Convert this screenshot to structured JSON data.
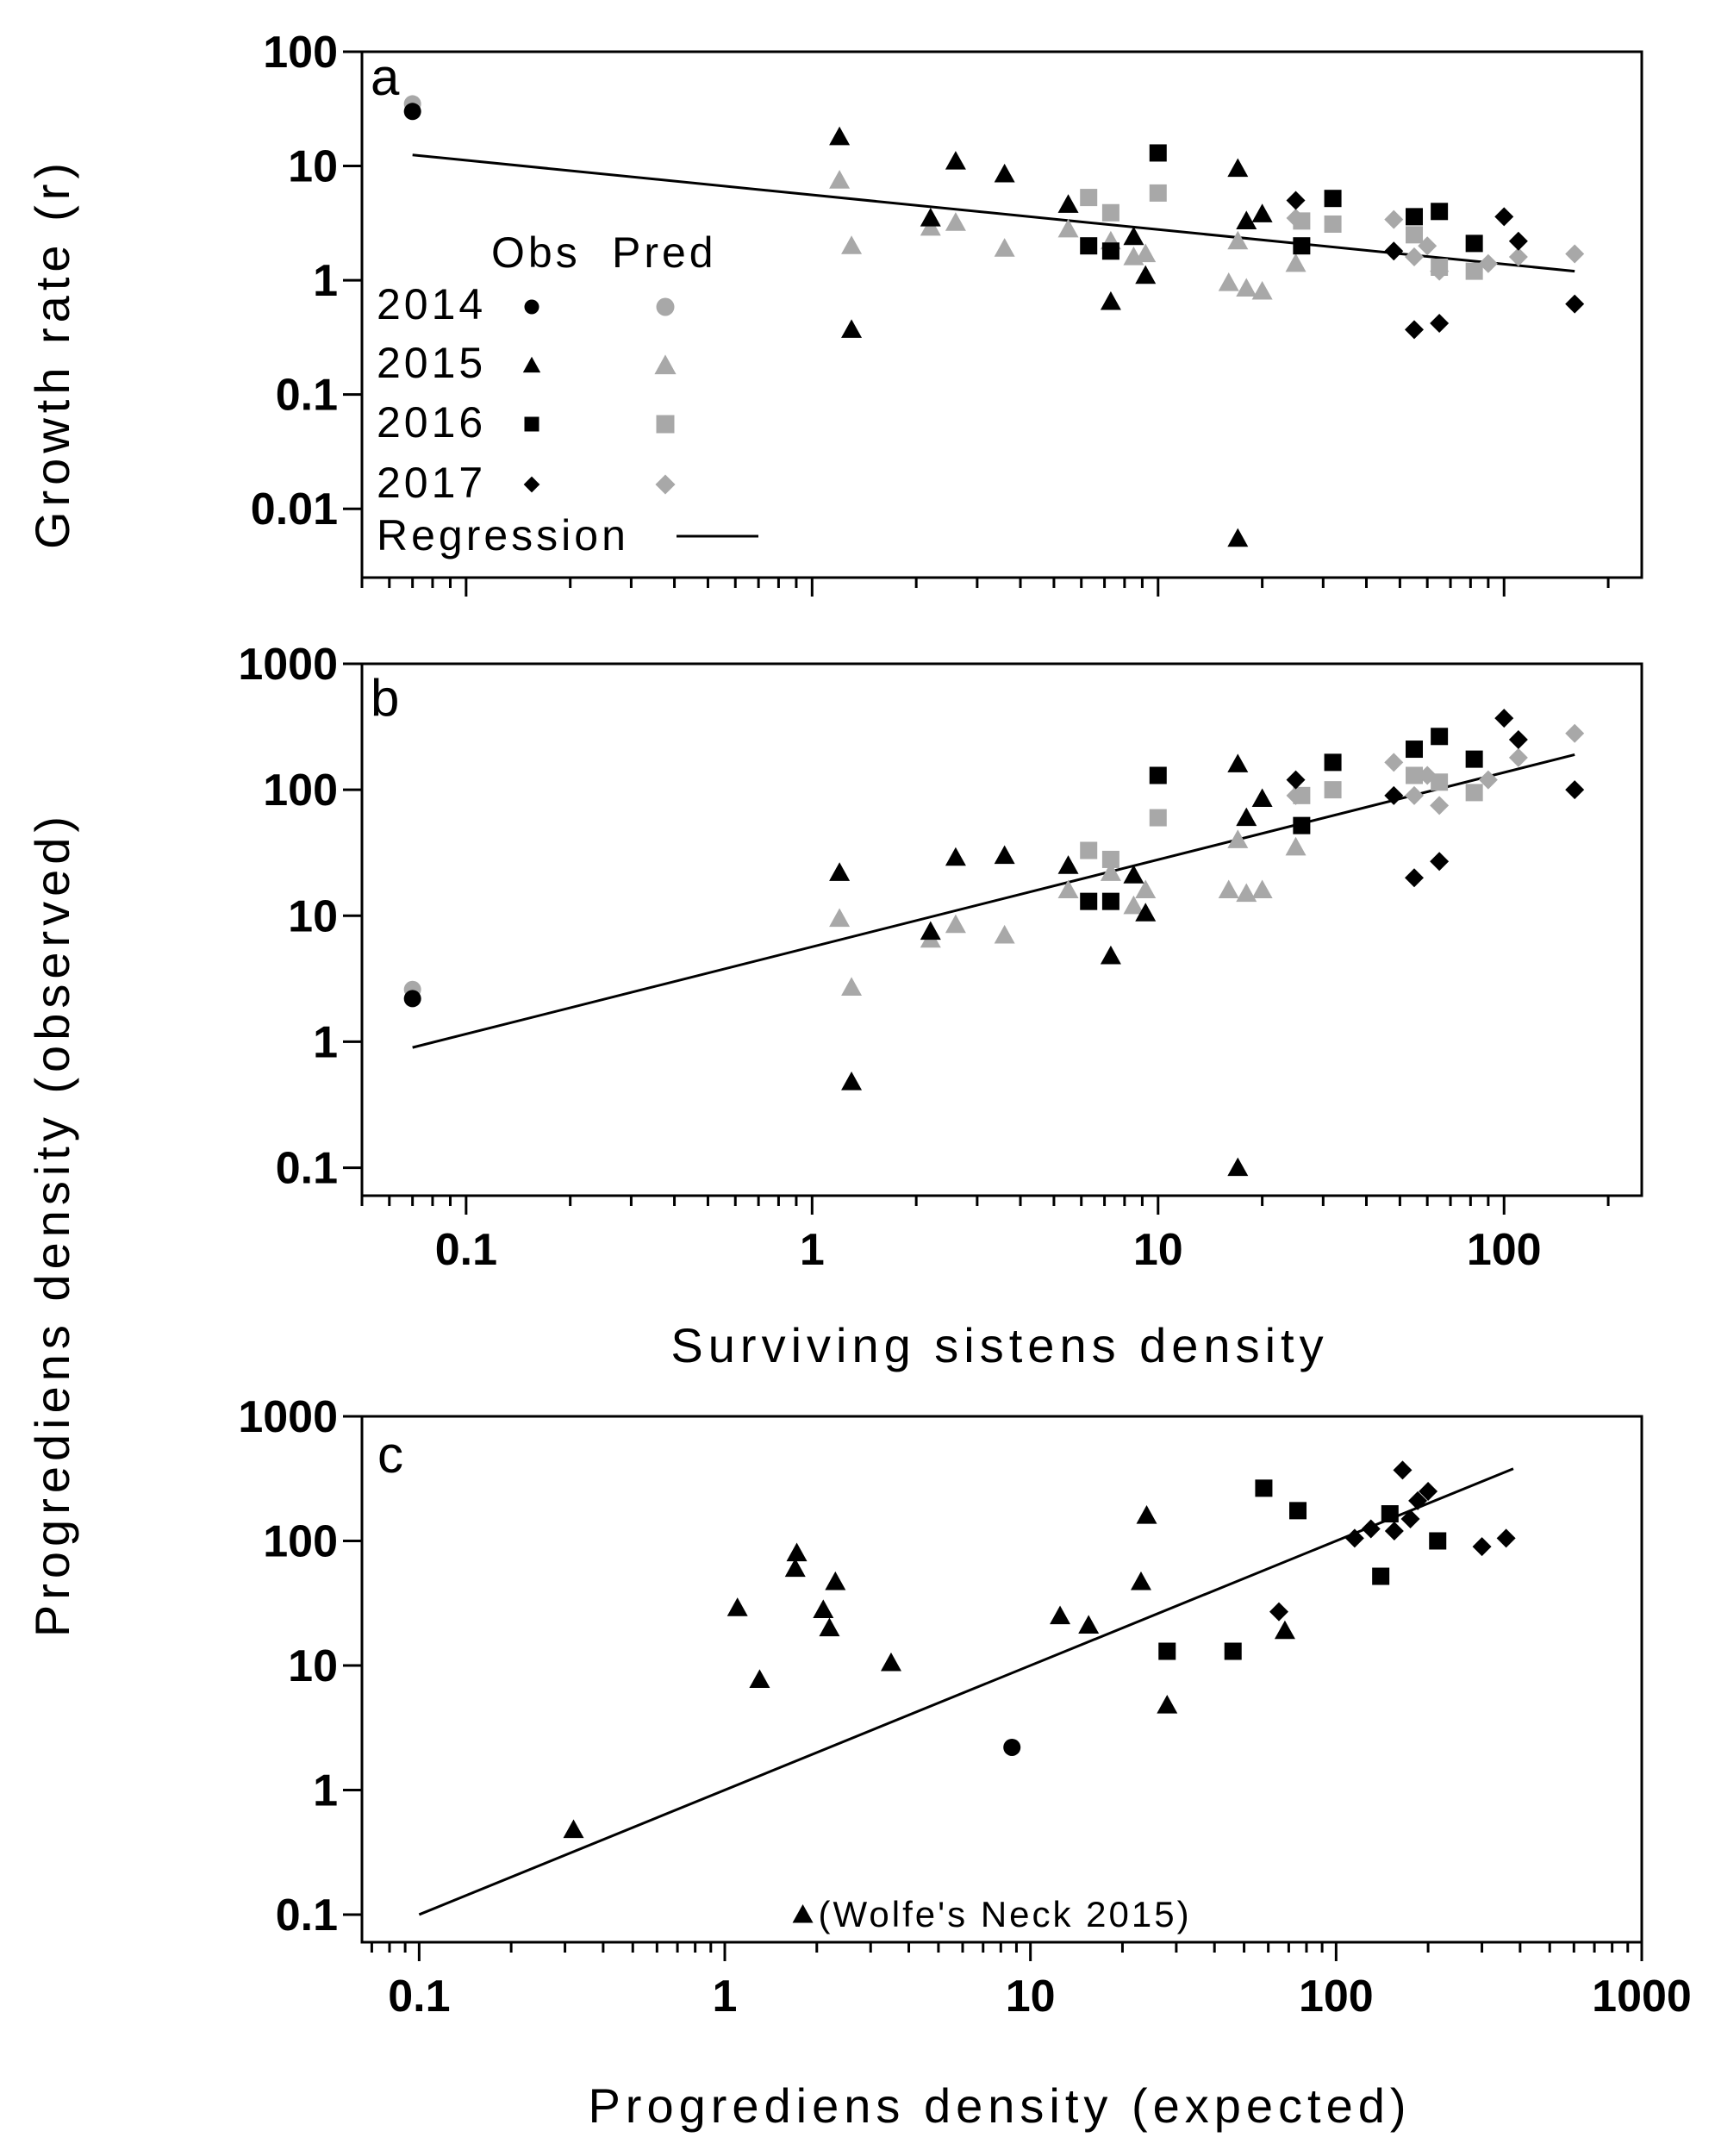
{
  "colors": {
    "obs": "#000000",
    "pred": "#a8a8a8"
  },
  "chart_data": [
    {
      "type": "scatter",
      "panel": "a",
      "xscale": "log",
      "yscale": "log",
      "xlim": [
        0.05,
        250
      ],
      "ylim": [
        0.0025,
        100
      ],
      "ylabel": "Growth rate (r)",
      "xticks": [
        0.1,
        1,
        10,
        100
      ],
      "xtick_labels": [],
      "yticks": [
        0.01,
        0.1,
        1,
        10,
        100
      ],
      "ytick_labels": [
        "0.01",
        "0.1",
        "1",
        "10",
        "100"
      ],
      "legend": {
        "header": [
          "Obs",
          "Pred"
        ],
        "years": [
          "2014",
          "2015",
          "2016",
          "2017"
        ],
        "regression_label": "Regression"
      },
      "regression": {
        "x": [
          0.07,
          160
        ],
        "y": [
          12.5,
          1.2
        ]
      },
      "series": [
        {
          "name": "2014",
          "kind": "obs",
          "marker": "circle",
          "points": [
            [
              0.07,
              30
            ]
          ]
        },
        {
          "name": "2014",
          "kind": "pred",
          "marker": "circle",
          "points": [
            [
              0.07,
              35
            ]
          ]
        },
        {
          "name": "2015",
          "kind": "obs",
          "marker": "triangle",
          "points": [
            [
              1.2,
              18
            ],
            [
              1.3,
              0.37
            ],
            [
              2.2,
              3.5
            ],
            [
              2.6,
              11
            ],
            [
              3.6,
              8.5
            ],
            [
              5.5,
              4.6
            ],
            [
              7.3,
              0.65
            ],
            [
              8.5,
              2.4
            ],
            [
              9.2,
              1.1
            ],
            [
              17,
              9.5
            ],
            [
              17,
              0.0055
            ],
            [
              18,
              3.3
            ],
            [
              20,
              3.8
            ]
          ]
        },
        {
          "name": "2015",
          "kind": "pred",
          "marker": "triangle",
          "points": [
            [
              1.2,
              7.5
            ],
            [
              1.3,
              2.0
            ],
            [
              2.2,
              2.9
            ],
            [
              2.6,
              3.2
            ],
            [
              3.6,
              1.9
            ],
            [
              5.5,
              2.8
            ],
            [
              7.3,
              2.2
            ],
            [
              8.5,
              1.6
            ],
            [
              9.2,
              1.7
            ],
            [
              16,
              0.95
            ],
            [
              17,
              2.2
            ],
            [
              18,
              0.85
            ],
            [
              20,
              0.8
            ],
            [
              25,
              1.4
            ]
          ]
        },
        {
          "name": "2016",
          "kind": "obs",
          "marker": "square",
          "points": [
            [
              6.3,
              2.0
            ],
            [
              7.3,
              1.8
            ],
            [
              10,
              13
            ],
            [
              26,
              2.0
            ],
            [
              32,
              5.2
            ],
            [
              55,
              3.6
            ],
            [
              65,
              4.0
            ],
            [
              82,
              2.1
            ]
          ]
        },
        {
          "name": "2016",
          "kind": "pred",
          "marker": "square",
          "points": [
            [
              6.3,
              5.3
            ],
            [
              7.3,
              3.9
            ],
            [
              10,
              5.8
            ],
            [
              26,
              3.3
            ],
            [
              32,
              3.1
            ],
            [
              55,
              2.5
            ],
            [
              65,
              1.3
            ],
            [
              82,
              1.2
            ]
          ]
        },
        {
          "name": "2017",
          "kind": "obs",
          "marker": "diamond",
          "points": [
            [
              25,
              5.0
            ],
            [
              48,
              1.8
            ],
            [
              55,
              0.37
            ],
            [
              65,
              0.42
            ],
            [
              100,
              3.6
            ],
            [
              110,
              2.2
            ],
            [
              160,
              0.62
            ]
          ]
        },
        {
          "name": "2017",
          "kind": "pred",
          "marker": "diamond",
          "points": [
            [
              25,
              3.5
            ],
            [
              48,
              3.4
            ],
            [
              55,
              1.6
            ],
            [
              60,
              2.0
            ],
            [
              65,
              1.2
            ],
            [
              90,
              1.4
            ],
            [
              110,
              1.6
            ],
            [
              160,
              1.7
            ]
          ]
        }
      ]
    },
    {
      "type": "scatter",
      "panel": "b",
      "xscale": "log",
      "yscale": "log",
      "xlim": [
        0.05,
        250
      ],
      "ylim": [
        0.06,
        1000
      ],
      "xlabel": "Surviving sistens density",
      "ylabel": "Progrediens density (observed)",
      "xticks": [
        0.1,
        1,
        10,
        100
      ],
      "xtick_labels": [
        "0.1",
        "1",
        "10",
        "100"
      ],
      "yticks": [
        0.1,
        1,
        10,
        100,
        1000
      ],
      "ytick_labels": [
        "0.1",
        "1",
        "10",
        "100",
        "1000"
      ],
      "regression": {
        "x": [
          0.07,
          160
        ],
        "y": [
          0.9,
          190
        ]
      },
      "series": [
        {
          "name": "2014",
          "kind": "obs",
          "marker": "circle",
          "points": [
            [
              0.07,
              2.2
            ]
          ]
        },
        {
          "name": "2014",
          "kind": "pred",
          "marker": "circle",
          "points": [
            [
              0.07,
              2.6
            ]
          ]
        },
        {
          "name": "2015",
          "kind": "obs",
          "marker": "triangle",
          "points": [
            [
              1.2,
              22
            ],
            [
              1.3,
              0.48
            ],
            [
              2.2,
              7.5
            ],
            [
              2.6,
              29
            ],
            [
              3.6,
              30
            ],
            [
              5.5,
              25
            ],
            [
              7.3,
              4.8
            ],
            [
              8.5,
              21
            ],
            [
              9.2,
              10.5
            ],
            [
              17,
              160
            ],
            [
              17,
              0.1
            ],
            [
              18,
              60
            ],
            [
              20,
              85
            ]
          ]
        },
        {
          "name": "2015",
          "kind": "pred",
          "marker": "triangle",
          "points": [
            [
              1.2,
              9.5
            ],
            [
              1.3,
              2.7
            ],
            [
              2.2,
              6.5
            ],
            [
              2.6,
              8.5
            ],
            [
              3.6,
              7
            ],
            [
              5.5,
              16
            ],
            [
              7.3,
              22
            ],
            [
              8.5,
              12
            ],
            [
              9.2,
              16
            ],
            [
              16,
              16
            ],
            [
              17,
              40
            ],
            [
              18,
              15
            ],
            [
              20,
              16
            ],
            [
              25,
              35
            ]
          ]
        },
        {
          "name": "2016",
          "kind": "obs",
          "marker": "square",
          "points": [
            [
              6.3,
              13
            ],
            [
              7.3,
              13
            ],
            [
              10,
              130
            ],
            [
              26,
              52
            ],
            [
              32,
              165
            ],
            [
              55,
              210
            ],
            [
              65,
              265
            ],
            [
              82,
              175
            ]
          ]
        },
        {
          "name": "2016",
          "kind": "pred",
          "marker": "square",
          "points": [
            [
              6.3,
              33
            ],
            [
              7.3,
              28
            ],
            [
              10,
              60
            ],
            [
              26,
              90
            ],
            [
              32,
              100
            ],
            [
              55,
              130
            ],
            [
              65,
              115
            ],
            [
              82,
              95
            ]
          ]
        },
        {
          "name": "2017",
          "kind": "obs",
          "marker": "diamond",
          "points": [
            [
              25,
              120
            ],
            [
              48,
              90
            ],
            [
              55,
              20
            ],
            [
              65,
              27
            ],
            [
              100,
              370
            ],
            [
              110,
              250
            ],
            [
              160,
              100
            ]
          ]
        },
        {
          "name": "2017",
          "kind": "pred",
          "marker": "diamond",
          "points": [
            [
              25,
              90
            ],
            [
              48,
              165
            ],
            [
              55,
              90
            ],
            [
              60,
              130
            ],
            [
              65,
              75
            ],
            [
              90,
              120
            ],
            [
              110,
              180
            ],
            [
              160,
              280
            ]
          ]
        }
      ]
    },
    {
      "type": "scatter",
      "panel": "c",
      "xscale": "log",
      "yscale": "log",
      "xlim": [
        0.065,
        1000
      ],
      "ylim": [
        0.06,
        1000
      ],
      "xlabel": "Progrediens density (expected)",
      "xticks": [
        0.1,
        1,
        10,
        100,
        1000
      ],
      "xtick_labels": [
        "0.1",
        "1",
        "10",
        "100",
        "1000"
      ],
      "yticks": [
        0.1,
        1,
        10,
        100,
        1000
      ],
      "ytick_labels": [
        "0.1",
        "1",
        "10",
        "100",
        "1000"
      ],
      "regression": {
        "x": [
          0.1,
          380
        ],
        "y": [
          0.1,
          380
        ]
      },
      "annotation": {
        "text": "(Wolfe's Neck 2015)",
        "x": 1.8,
        "y": 0.1
      },
      "series": [
        {
          "name": "2014",
          "kind": "obs",
          "marker": "circle",
          "points": [
            [
              8.7,
              2.2
            ]
          ]
        },
        {
          "name": "2015",
          "kind": "obs",
          "marker": "triangle",
          "points": [
            [
              0.32,
              0.48
            ],
            [
              1.1,
              29
            ],
            [
              1.3,
              7.7
            ],
            [
              1.7,
              60
            ],
            [
              1.72,
              80
            ],
            [
              2.1,
              28
            ],
            [
              2.2,
              20
            ],
            [
              2.3,
              47
            ],
            [
              3.5,
              10.5
            ],
            [
              12.5,
              25
            ],
            [
              15.5,
              21
            ],
            [
              23,
              47
            ],
            [
              24,
              160
            ],
            [
              28,
              4.8
            ],
            [
              68,
              19
            ],
            [
              1.8,
              0.1
            ]
          ]
        },
        {
          "name": "2016",
          "kind": "obs",
          "marker": "square",
          "points": [
            [
              28,
              13
            ],
            [
              46,
              13
            ],
            [
              58,
              265
            ],
            [
              75,
              175
            ],
            [
              140,
              52
            ],
            [
              150,
              165
            ],
            [
              215,
              100
            ]
          ]
        },
        {
          "name": "2017",
          "kind": "obs",
          "marker": "diamond",
          "points": [
            [
              65,
              27
            ],
            [
              115,
              105
            ],
            [
              130,
              125
            ],
            [
              155,
              120
            ],
            [
              165,
              370
            ],
            [
              175,
              150
            ],
            [
              185,
              210
            ],
            [
              200,
              250
            ],
            [
              300,
              90
            ],
            [
              360,
              105
            ]
          ]
        }
      ]
    }
  ]
}
